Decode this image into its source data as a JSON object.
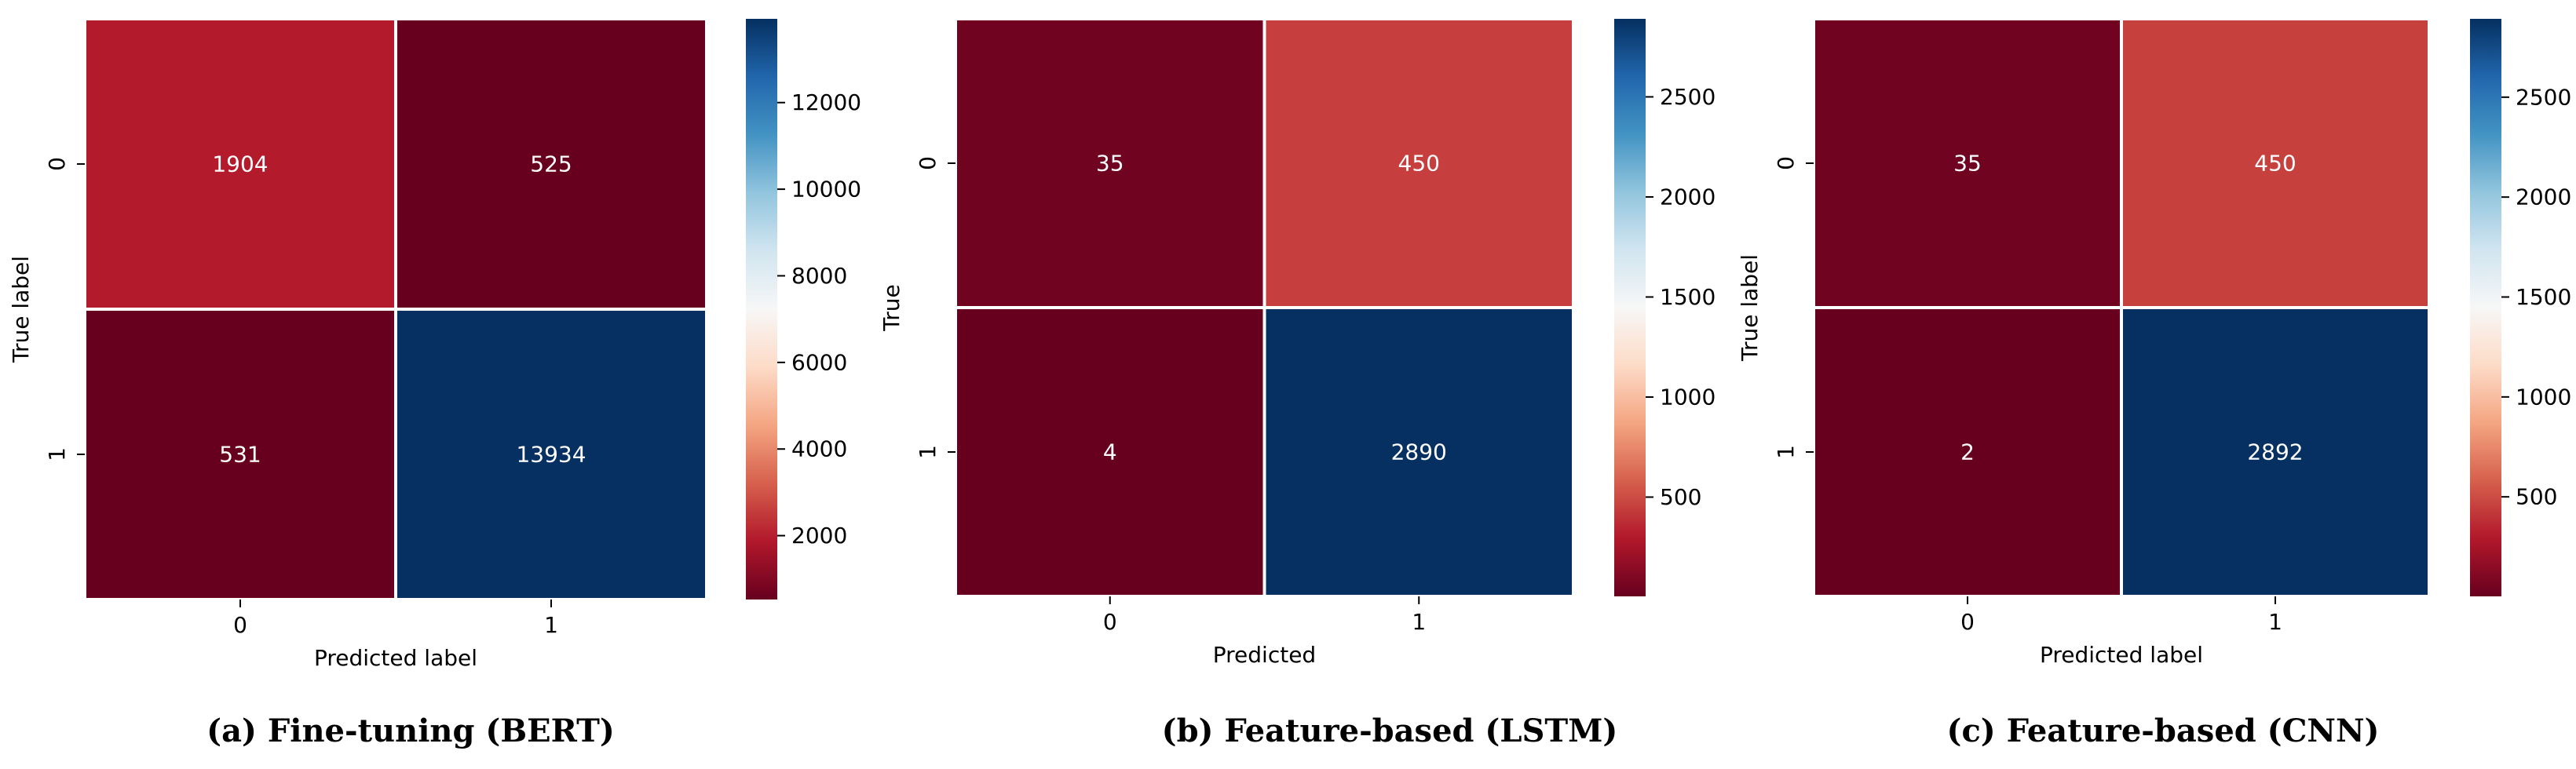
{
  "chart_data": [
    {
      "type": "heatmap",
      "x_categories": [
        "0",
        "1"
      ],
      "y_categories": [
        "0",
        "1"
      ],
      "values": [
        [
          1904,
          525
        ],
        [
          531,
          13934
        ]
      ],
      "cell_labels": [
        [
          "1904",
          "525"
        ],
        [
          "531",
          "13934"
        ]
      ],
      "xlabel": "Predicted label",
      "ylabel": "True label",
      "colorbar": {
        "range": [
          525,
          13934
        ],
        "ticks": [
          2000,
          4000,
          6000,
          8000,
          10000,
          12000
        ]
      },
      "colormap": "RdBu",
      "caption": "(a) Fine-tuning (BERT)"
    },
    {
      "type": "heatmap",
      "x_categories": [
        "0",
        "1"
      ],
      "y_categories": [
        "0",
        "1"
      ],
      "values": [
        [
          35,
          450
        ],
        [
          4,
          2890
        ]
      ],
      "cell_labels": [
        [
          "35",
          "450"
        ],
        [
          "4",
          "2890"
        ]
      ],
      "xlabel": "Predicted",
      "ylabel": "True",
      "colorbar": {
        "range": [
          4,
          2890
        ],
        "ticks": [
          500,
          1000,
          1500,
          2000,
          2500
        ]
      },
      "colormap": "RdBu",
      "caption": "(b) Feature-based (LSTM)"
    },
    {
      "type": "heatmap",
      "x_categories": [
        "0",
        "1"
      ],
      "y_categories": [
        "0",
        "1"
      ],
      "values": [
        [
          35,
          450
        ],
        [
          2,
          2892
        ]
      ],
      "cell_labels": [
        [
          "35",
          "450"
        ],
        [
          "2",
          "2892"
        ]
      ],
      "xlabel": "Predicted label",
      "ylabel": "True label",
      "colorbar": {
        "range": [
          2,
          2892
        ],
        "ticks": [
          500,
          1000,
          1500,
          2000,
          2500
        ]
      },
      "colormap": "RdBu",
      "caption": "(c) Feature-based (CNN)"
    }
  ],
  "colors": {
    "text_on_light": "#262626",
    "text_on_dark": "#ffffff",
    "axis_text": "#000000",
    "cell_border": "#ffffff"
  }
}
